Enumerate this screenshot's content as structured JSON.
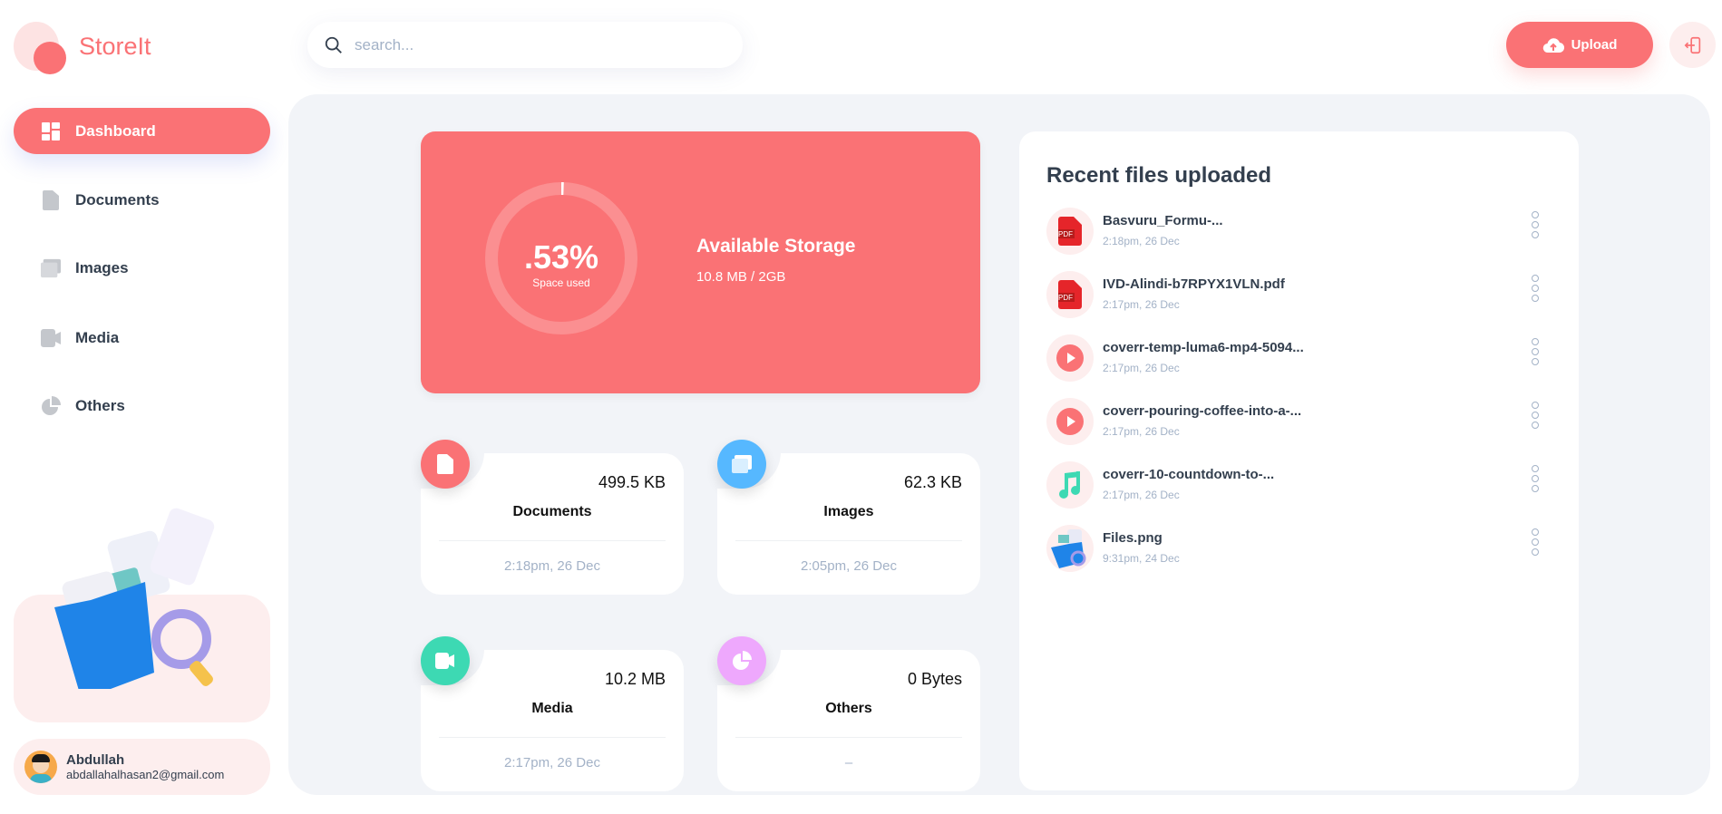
{
  "brand": {
    "name": "StoreIt",
    "accent": "#fa7275"
  },
  "search": {
    "placeholder": "search..."
  },
  "header": {
    "upload_label": "Upload"
  },
  "sidebar": {
    "items": [
      {
        "label": "Dashboard",
        "icon": "dashboard-icon",
        "active": true
      },
      {
        "label": "Documents",
        "icon": "document-icon"
      },
      {
        "label": "Images",
        "icon": "images-icon"
      },
      {
        "label": "Media",
        "icon": "video-icon"
      },
      {
        "label": "Others",
        "icon": "pie-chart-icon"
      }
    ]
  },
  "user": {
    "name": "Abdullah",
    "email": "abdallahalhasan2@gmail.com"
  },
  "storage": {
    "percent_label": ".53%",
    "percent": 0.53,
    "caption": "Space used",
    "title": "Available Storage",
    "usage": "10.8 MB / 2GB"
  },
  "categories": [
    {
      "name": "Documents",
      "size": "499.5 KB",
      "date": "2:18pm, 26 Dec",
      "color": "#fa7275",
      "icon": "document-icon"
    },
    {
      "name": "Images",
      "size": "62.3 KB",
      "date": "2:05pm, 26 Dec",
      "color": "#56b8ff",
      "icon": "images-icon"
    },
    {
      "name": "Media",
      "size": "10.2 MB",
      "date": "2:17pm, 26 Dec",
      "color": "#3dd9b3",
      "icon": "video-icon"
    },
    {
      "name": "Others",
      "size": "0 Bytes",
      "date": "–",
      "color": "#eea8fd",
      "icon": "pie-chart-icon"
    }
  ],
  "recent": {
    "title": "Recent files uploaded",
    "files": [
      {
        "name": "Basvuru_Formu-...",
        "date": "2:18pm, 26 Dec",
        "type": "pdf"
      },
      {
        "name": "IVD-Alindi-b7RPYX1VLN.pdf",
        "date": "2:17pm, 26 Dec",
        "type": "pdf"
      },
      {
        "name": "coverr-temp-luma6-mp4-5094...",
        "date": "2:17pm, 26 Dec",
        "type": "video"
      },
      {
        "name": "coverr-pouring-coffee-into-a-...",
        "date": "2:17pm, 26 Dec",
        "type": "video"
      },
      {
        "name": "coverr-10-countdown-to-...",
        "date": "2:17pm, 26 Dec",
        "type": "audio"
      },
      {
        "name": "Files.png",
        "date": "9:31pm, 24 Dec",
        "type": "image"
      }
    ]
  }
}
